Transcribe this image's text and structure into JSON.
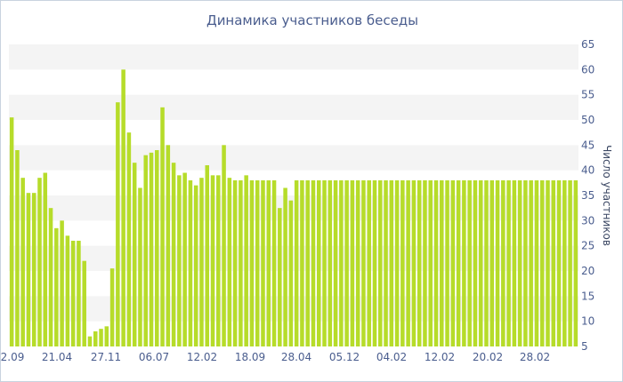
{
  "chart_data": {
    "type": "bar",
    "title": "Динамика участников беседы",
    "ylabel": "Число участников",
    "xlabel": "",
    "ylim": [
      5,
      65
    ],
    "yticks": [
      5,
      10,
      15,
      20,
      25,
      30,
      35,
      40,
      45,
      50,
      55,
      60,
      65
    ],
    "x_tick_labels": [
      "2.09",
      "21.04",
      "27.11",
      "06.07",
      "12.02",
      "18.09",
      "28.04",
      "05.12",
      "04.02",
      "12.02",
      "20.02",
      "28.02"
    ],
    "grid": "horizontal alternating bands",
    "bar_color": "#b6dc2a",
    "values": [
      50.5,
      44,
      38.5,
      35.5,
      35.5,
      38.5,
      39.5,
      32.5,
      28.5,
      30,
      27,
      26,
      26,
      22,
      7,
      8,
      8.5,
      9,
      20.5,
      53.5,
      60,
      47.5,
      41.5,
      36.5,
      43,
      43.5,
      44,
      52.5,
      45,
      41.5,
      39,
      39.5,
      38,
      37,
      38.5,
      41,
      39,
      39,
      45,
      38.5,
      38,
      38,
      39,
      38,
      38,
      38,
      38,
      38,
      32.5,
      36.5,
      34,
      38,
      38,
      38,
      38,
      38,
      38,
      38,
      38,
      38,
      38,
      38,
      38,
      38,
      38,
      38,
      38,
      38,
      38,
      38,
      38,
      38,
      38,
      38,
      38,
      38,
      38,
      38,
      38,
      38,
      38,
      38,
      38,
      38,
      38,
      38,
      38,
      38,
      38,
      38,
      38,
      38,
      38,
      38,
      38,
      38,
      38,
      38,
      38,
      38,
      38,
      38
    ]
  }
}
